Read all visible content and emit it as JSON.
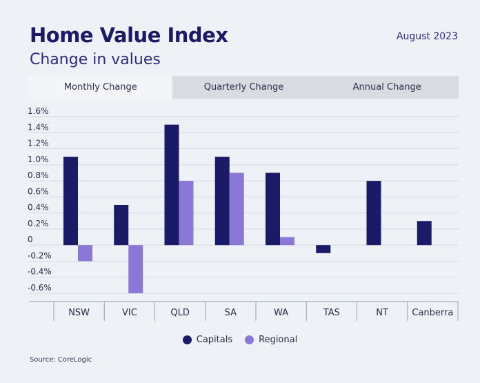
{
  "header": {
    "title": "Home Value Index",
    "subtitle": "Change in values",
    "date": "August 2023"
  },
  "tabs": [
    {
      "label": "Monthly Change",
      "active": true
    },
    {
      "label": "Quarterly Change",
      "active": false
    },
    {
      "label": "Annual Change",
      "active": false
    }
  ],
  "chart_data": {
    "type": "bar",
    "categories": [
      "NSW",
      "VIC",
      "QLD",
      "SA",
      "WA",
      "TAS",
      "NT",
      "Canberra"
    ],
    "series": [
      {
        "name": "Capitals",
        "color": "#1b1a66",
        "values": [
          1.1,
          0.5,
          1.5,
          1.1,
          0.9,
          -0.1,
          0.8,
          0.3
        ]
      },
      {
        "name": "Regional",
        "color": "#8b78d6",
        "values": [
          -0.2,
          -0.6,
          0.8,
          0.9,
          0.1,
          null,
          null,
          null
        ]
      }
    ],
    "yticks": [
      1.6,
      1.4,
      1.2,
      1.0,
      0.8,
      0.6,
      0.4,
      0.2,
      0,
      -0.2,
      -0.4,
      -0.6
    ],
    "ytick_labels": [
      "1.6%",
      "1.4%",
      "1.2%",
      "1.0%",
      "0.8%",
      "0.6%",
      "0.4%",
      "0.2%",
      "0",
      "-0.2%",
      "-0.4%",
      "-0.6%"
    ],
    "ylim": [
      -0.6,
      1.6
    ],
    "ylabel": "",
    "xlabel": ""
  },
  "legend": {
    "capitals_label": "Capitals",
    "regional_label": "Regional"
  },
  "footer": {
    "source": "Source: CoreLogic"
  }
}
